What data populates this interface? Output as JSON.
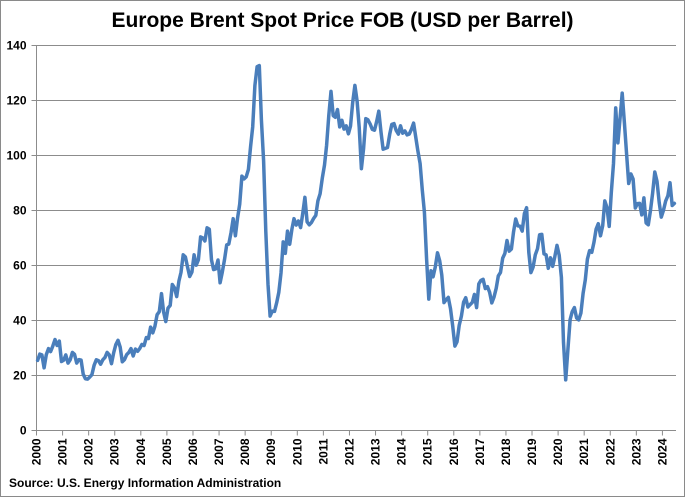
{
  "chart_data": {
    "type": "line",
    "title": "Europe Brent Spot Price FOB (USD per Barrel)",
    "source": "Source: U.S. Energy Information Administration",
    "xlabel": "",
    "ylabel": "",
    "ylim": [
      0,
      140
    ],
    "yticks": [
      0,
      20,
      40,
      60,
      80,
      100,
      120,
      140
    ],
    "xticks": [
      "2000",
      "2001",
      "2002",
      "2003",
      "2004",
      "2005",
      "2006",
      "2007",
      "2008",
      "2009",
      "2010",
      "2011",
      "2012",
      "2013",
      "2014",
      "2015",
      "2016",
      "2017",
      "2018",
      "2019",
      "2020",
      "2021",
      "2022",
      "2023",
      "2024"
    ],
    "grid": "horizontal",
    "legend": "none",
    "color": "#4A7EBB",
    "frequency": "monthly",
    "series": [
      {
        "values_by_year": {
          "2000": [
            25.5,
            27.8,
            27.5,
            22.8,
            27.6,
            29.8,
            28.7,
            30.7,
            33.1,
            30.9,
            32.5,
            25.1
          ],
          "2001": [
            25.6,
            27.5,
            24.5,
            25.7,
            28.4,
            27.7,
            24.5,
            25.8,
            25.6,
            20.5,
            18.8,
            18.7
          ],
          "2002": [
            19.4,
            20.3,
            23.7,
            25.7,
            25.4,
            24.1,
            25.7,
            26.6,
            28.4,
            27.5,
            24.3,
            28.3
          ],
          "2003": [
            31.2,
            32.8,
            30.3,
            25.0,
            25.8,
            27.6,
            28.4,
            29.8,
            27.1,
            29.6,
            28.8,
            29.8
          ],
          "2004": [
            31.3,
            30.9,
            33.8,
            33.4,
            37.6,
            35.5,
            37.9,
            42.1,
            43.2,
            49.8,
            43.1,
            39.6
          ],
          "2005": [
            44.5,
            45.5,
            53.1,
            51.9,
            48.7,
            54.3,
            57.5,
            63.9,
            63.1,
            59.5,
            56.0,
            57.6
          ],
          "2006": [
            63.9,
            60.1,
            62.1,
            70.4,
            70.0,
            68.9,
            73.7,
            73.2,
            62.0,
            58.5,
            58.8,
            62.0
          ],
          "2007": [
            53.7,
            57.6,
            62.1,
            67.5,
            67.8,
            71.9,
            77.0,
            70.8,
            77.1,
            82.3,
            92.5,
            91.5
          ],
          "2008": [
            92.2,
            94.9,
            103.3,
            110.4,
            125.5,
            132.3,
            132.7,
            113.0,
            98.1,
            72.4,
            53.2,
            41.6
          ],
          "2009": [
            43.4,
            43.3,
            46.5,
            50.2,
            57.3,
            68.6,
            64.4,
            72.5,
            67.7,
            73.2,
            77.0,
            74.7
          ],
          "2010": [
            76.2,
            73.8,
            78.8,
            84.8,
            75.9,
            74.8,
            75.6,
            77.1,
            78.2,
            83.5,
            86.1,
            91.8
          ],
          "2011": [
            96.5,
            103.7,
            114.6,
            123.3,
            114.5,
            113.9,
            116.7,
            110.4,
            112.8,
            109.6,
            110.8,
            107.9
          ],
          "2012": [
            110.7,
            119.3,
            125.5,
            119.8,
            110.3,
            95.2,
            102.6,
            113.4,
            113.0,
            111.5,
            109.5,
            109.2
          ],
          "2013": [
            112.3,
            116.1,
            108.5,
            102.3,
            102.6,
            102.9,
            107.7,
            111.3,
            111.6,
            109.1,
            107.8,
            110.8
          ],
          "2014": [
            108.1,
            108.9,
            107.5,
            107.8,
            109.5,
            111.8,
            106.8,
            101.6,
            97.1,
            87.4,
            79.4,
            62.3
          ],
          "2015": [
            47.8,
            58.1,
            55.9,
            59.5,
            64.6,
            61.7,
            56.5,
            46.5,
            47.6,
            48.4,
            44.3,
            38.0
          ],
          "2016": [
            30.7,
            32.2,
            38.2,
            41.6,
            46.7,
            48.3,
            44.9,
            45.8,
            46.6,
            49.5,
            44.7,
            53.3
          ],
          "2017": [
            54.6,
            55.0,
            51.6,
            52.3,
            50.3,
            46.4,
            48.5,
            51.7,
            56.2,
            57.5,
            62.7,
            64.4
          ],
          "2018": [
            69.1,
            65.2,
            66.0,
            72.1,
            76.9,
            74.4,
            74.3,
            72.5,
            78.9,
            81.0,
            64.8,
            57.4
          ],
          "2019": [
            59.4,
            63.9,
            66.1,
            71.2,
            71.3,
            64.2,
            63.9,
            59.0,
            62.8,
            59.7,
            63.2,
            67.3
          ],
          "2020": [
            63.7,
            55.7,
            32.0,
            18.4,
            29.4,
            40.3,
            43.2,
            44.7,
            40.9,
            40.2,
            42.7,
            49.9
          ],
          "2021": [
            54.8,
            62.3,
            65.4,
            64.8,
            68.5,
            73.2,
            75.2,
            70.8,
            74.5,
            83.5,
            81.1,
            74.2
          ],
          "2022": [
            86.5,
            97.1,
            117.3,
            104.6,
            113.3,
            122.7,
            111.9,
            100.5,
            89.8,
            93.3,
            91.4,
            80.9
          ],
          "2023": [
            82.5,
            82.6,
            78.4,
            84.6,
            75.5,
            74.8,
            80.1,
            86.2,
            94.0,
            90.6,
            82.9,
            77.6
          ],
          "2024": [
            80.1,
            83.5,
            85.4,
            90.1,
            81.8,
            82.6
          ]
        }
      }
    ]
  }
}
